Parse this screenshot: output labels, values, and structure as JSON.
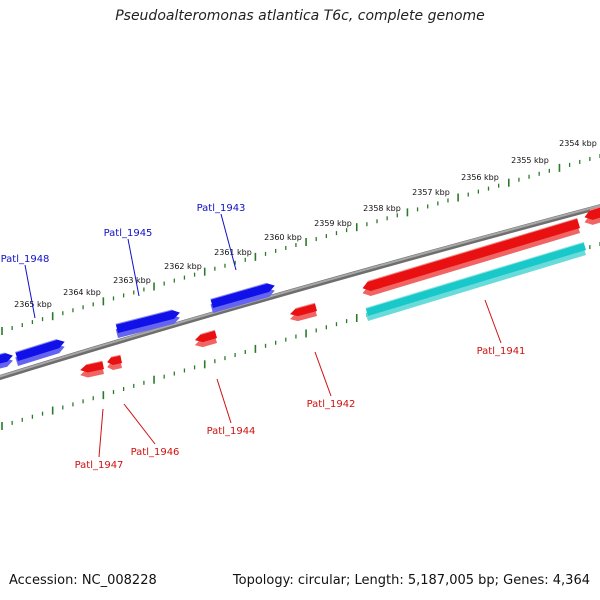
{
  "title": "Pseudoalteromonas atlantica T6c, complete genome",
  "footer": {
    "accession": "Accession: NC_008228",
    "stats": "Topology: circular; Length: 5,187,005 bp; Genes: 4,364"
  },
  "ruler_ticks": [
    "2354 kbp",
    "2355 kbp",
    "2356 kbp",
    "2357 kbp",
    "2358 kbp",
    "2359 kbp",
    "2360 kbp",
    "2361 kbp",
    "2362 kbp",
    "2363 kbp",
    "2364 kbp",
    "2365 kbp"
  ],
  "colors": {
    "backbone": "#8a8a8a",
    "forward_gene": "#1010e8",
    "reverse_gene": "#e81010",
    "rna_gene": "#19c8c8",
    "tick": "#2a7a2a",
    "forward_label": "#1010c8",
    "reverse_label": "#d01010"
  },
  "genes": [
    {
      "label": "Patl_1941",
      "strand": "reverse"
    },
    {
      "label": "Patl_1942",
      "strand": "reverse"
    },
    {
      "label": "Patl_1943",
      "strand": "forward"
    },
    {
      "label": "Patl_1944",
      "strand": "reverse"
    },
    {
      "label": "Patl_1945",
      "strand": "forward"
    },
    {
      "label": "Patl_1946",
      "strand": "reverse"
    },
    {
      "label": "Patl_1947",
      "strand": "reverse"
    },
    {
      "label": "Patl_1948",
      "strand": "forward"
    }
  ]
}
